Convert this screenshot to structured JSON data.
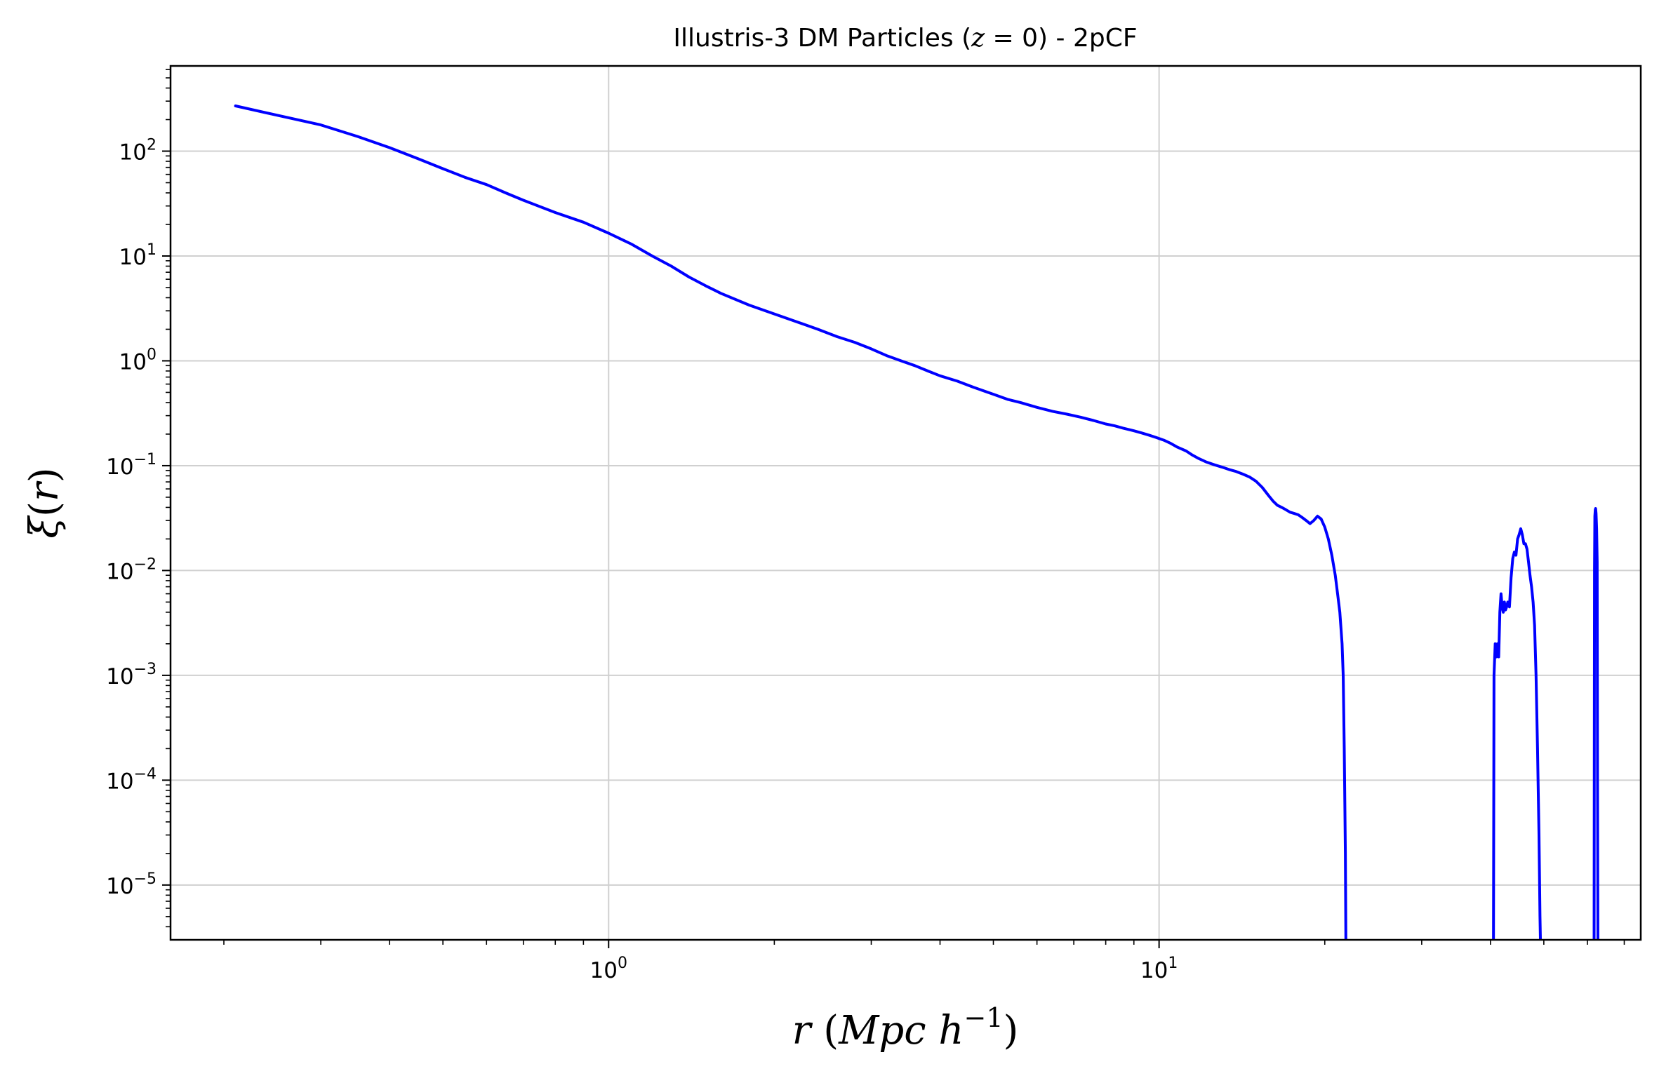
{
  "chart_data": {
    "type": "line",
    "title": "Illustris-3 DM Particles (z = 0) - 2pCF",
    "title_parts": {
      "before": "Illustris-3 DM Particles (",
      "z": "z",
      "eq": " = 0",
      "after": ") - 2pCF"
    },
    "xlabel": "r (Mpc h^-1)",
    "xlabel_parts": {
      "r": "r",
      "open": " (",
      "unit": "Mpc h",
      "exp": "−1",
      "close": ")"
    },
    "ylabel": "ξ(r)",
    "ylabel_parts": {
      "xi": "ξ",
      "open": "(",
      "r": "r",
      "close": ")"
    },
    "x_scale": "log",
    "y_scale": "log",
    "xlim": [
      0.16,
      75
    ],
    "ylim": [
      3e-06,
      650
    ],
    "grid": true,
    "x_ticks": [
      {
        "value": 1,
        "base": "10",
        "exp": "0"
      },
      {
        "value": 10,
        "base": "10",
        "exp": "1"
      }
    ],
    "y_ticks": [
      {
        "value": 100,
        "base": "10",
        "exp": "2"
      },
      {
        "value": 10,
        "base": "10",
        "exp": "1"
      },
      {
        "value": 1,
        "base": "10",
        "exp": "0"
      },
      {
        "value": 0.1,
        "base": "10",
        "exp": "−1"
      },
      {
        "value": 0.01,
        "base": "10",
        "exp": "−2"
      },
      {
        "value": 0.001,
        "base": "10",
        "exp": "−3"
      },
      {
        "value": 0.0001,
        "base": "10",
        "exp": "−4"
      },
      {
        "value": 1e-05,
        "base": "10",
        "exp": "−5"
      }
    ],
    "series": [
      {
        "color": "#0000ff",
        "segments": [
          {
            "x": [
              0.21,
              0.25,
              0.3,
              0.35,
              0.4,
              0.45,
              0.5,
              0.55,
              0.6,
              0.65,
              0.7,
              0.8,
              0.9,
              1.0,
              1.1,
              1.2,
              1.3,
              1.4,
              1.5,
              1.6,
              1.8,
              2.0,
              2.2,
              2.4,
              2.6,
              2.8,
              3.0,
              3.2,
              3.4,
              3.6,
              3.8,
              4.0,
              4.3,
              4.6,
              5.0,
              5.3,
              5.6,
              6.0,
              6.4,
              6.8,
              7.2,
              7.6,
              8.0,
              8.3,
              8.6,
              9.0,
              9.3,
              9.6,
              9.9,
              10.2,
              10.5,
              10.8,
              11.2,
              11.5,
              11.8,
              12.2,
              12.6,
              13.0,
              13.4,
              13.8,
              14.2,
              14.6,
              15.0,
              15.4,
              15.8,
              16.1,
              16.4,
              16.7,
              17.0,
              17.3,
              17.6,
              17.9,
              18.2,
              18.5,
              18.8,
              19.1,
              19.4,
              19.7,
              20.0,
              20.3,
              20.6,
              20.9,
              21.1,
              21.3,
              21.5,
              21.6,
              21.7,
              21.8,
              21.85
            ],
            "y": [
              270,
              220,
              178,
              138,
              108,
              85,
              68,
              56,
              48,
              40,
              34,
              26,
              21,
              16.5,
              13,
              10,
              8,
              6.3,
              5.2,
              4.4,
              3.4,
              2.8,
              2.35,
              2.0,
              1.7,
              1.5,
              1.3,
              1.12,
              1.0,
              0.9,
              0.8,
              0.72,
              0.64,
              0.56,
              0.48,
              0.43,
              0.4,
              0.36,
              0.33,
              0.31,
              0.29,
              0.27,
              0.25,
              0.24,
              0.228,
              0.215,
              0.205,
              0.195,
              0.185,
              0.175,
              0.163,
              0.15,
              0.138,
              0.126,
              0.117,
              0.108,
              0.102,
              0.097,
              0.092,
              0.088,
              0.083,
              0.078,
              0.071,
              0.062,
              0.052,
              0.046,
              0.042,
              0.04,
              0.038,
              0.036,
              0.035,
              0.034,
              0.032,
              0.03,
              0.028,
              0.03,
              0.033,
              0.031,
              0.026,
              0.02,
              0.014,
              0.009,
              0.006,
              0.004,
              0.002,
              0.001,
              0.0002,
              2e-05,
              1e-06
            ]
          },
          {
            "x": [
              40.5,
              40.6,
              40.8,
              41.0,
              41.2,
              41.4,
              41.6,
              41.8,
              42.0,
              42.2,
              42.4,
              42.6,
              42.8,
              43.0,
              43.3,
              43.6,
              43.9,
              44.2,
              44.5,
              44.8,
              45.1,
              45.4,
              45.7,
              46.0,
              46.3,
              46.6,
              46.9,
              47.2,
              47.5,
              47.8,
              48.1,
              48.4,
              48.7,
              49.0,
              49.2,
              49.35
            ],
            "y": [
              1e-06,
              0.001,
              0.002,
              0.0015,
              0.002,
              0.0015,
              0.004,
              0.006,
              0.0045,
              0.004,
              0.005,
              0.0042,
              0.0045,
              0.005,
              0.0045,
              0.0085,
              0.013,
              0.015,
              0.014,
              0.02,
              0.022,
              0.025,
              0.022,
              0.018,
              0.018,
              0.016,
              0.012,
              0.009,
              0.007,
              0.005,
              0.003,
              0.001,
              0.0002,
              3e-05,
              5e-06,
              1e-06
            ]
          },
          {
            "x": [
              61.7,
              61.8,
              61.9,
              62.0,
              62.1,
              62.2,
              62.35,
              62.5,
              62.6,
              62.7
            ],
            "y": [
              1e-06,
              0.01,
              0.033,
              0.038,
              0.039,
              0.035,
              0.025,
              0.012,
              0.0001,
              1e-06
            ]
          }
        ]
      }
    ]
  }
}
